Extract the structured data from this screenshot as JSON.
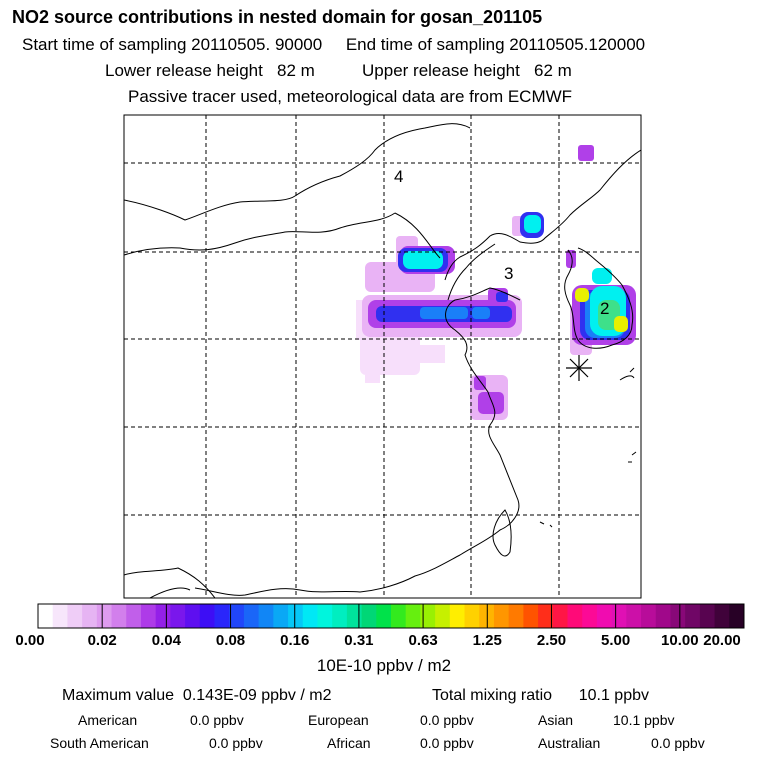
{
  "chart_data": {
    "type": "heatmap",
    "title": "NO2 source contributions in nested domain for gosan_201105",
    "subtitle_lines": [
      "Start time of sampling 20110505. 90000     End time of sampling 20110505.120000",
      "Lower release height   82 m          Upper release height   62 m",
      "Passive tracer used, meteorological data are from ECMWF"
    ],
    "region_labels": [
      "4",
      "3",
      "2"
    ],
    "colorbar": {
      "ticks": [
        "0.00",
        "0.02",
        "0.04",
        "0.08",
        "0.16",
        "0.31",
        "0.63",
        "1.25",
        "2.50",
        "5.00",
        "10.00",
        "20.00"
      ],
      "colors": [
        "#ffffff",
        "#f7e6fb",
        "#efcdf7",
        "#e6b4f3",
        "#de9bef",
        "#d27fec",
        "#c15fea",
        "#ae3be8",
        "#9420e8",
        "#7a17ec",
        "#5e0ff0",
        "#3d0ef5",
        "#2a26fa",
        "#2146fa",
        "#1a66f8",
        "#1186f6",
        "#0aa8f5",
        "#06c8f7",
        "#00e8f5",
        "#00f5dd",
        "#00eec0",
        "#00e39c",
        "#00d776",
        "#00e24a",
        "#33ea1e",
        "#66ef0f",
        "#99f003",
        "#c6f000",
        "#ffee00",
        "#ffd100",
        "#ffb400",
        "#ff9600",
        "#ff7a00",
        "#ff5300",
        "#ff2e1a",
        "#ff1645",
        "#ff0a78",
        "#fc0a96",
        "#f00cb0",
        "#e010b4",
        "#cc10a8",
        "#b80c9a",
        "#a0088a",
        "#880878",
        "#700666",
        "#580450",
        "#40023a",
        "#280126"
      ],
      "unit": "10E-10 ppbv / m2"
    },
    "stats": {
      "max_value": "Maximum value  0.143E-09 ppbv / m2",
      "total_mixing": "Total mixing ratio      10.1 ppbv",
      "sources": [
        {
          "name": "American",
          "value": "0.0 ppbv"
        },
        {
          "name": "European",
          "value": "0.0 ppbv"
        },
        {
          "name": "Asian",
          "value": "10.1 ppbv"
        },
        {
          "name": "South American",
          "value": "0.0 ppbv"
        },
        {
          "name": "African",
          "value": "0.0 ppbv"
        },
        {
          "name": "Australian",
          "value": "0.0 ppbv"
        }
      ]
    }
  }
}
